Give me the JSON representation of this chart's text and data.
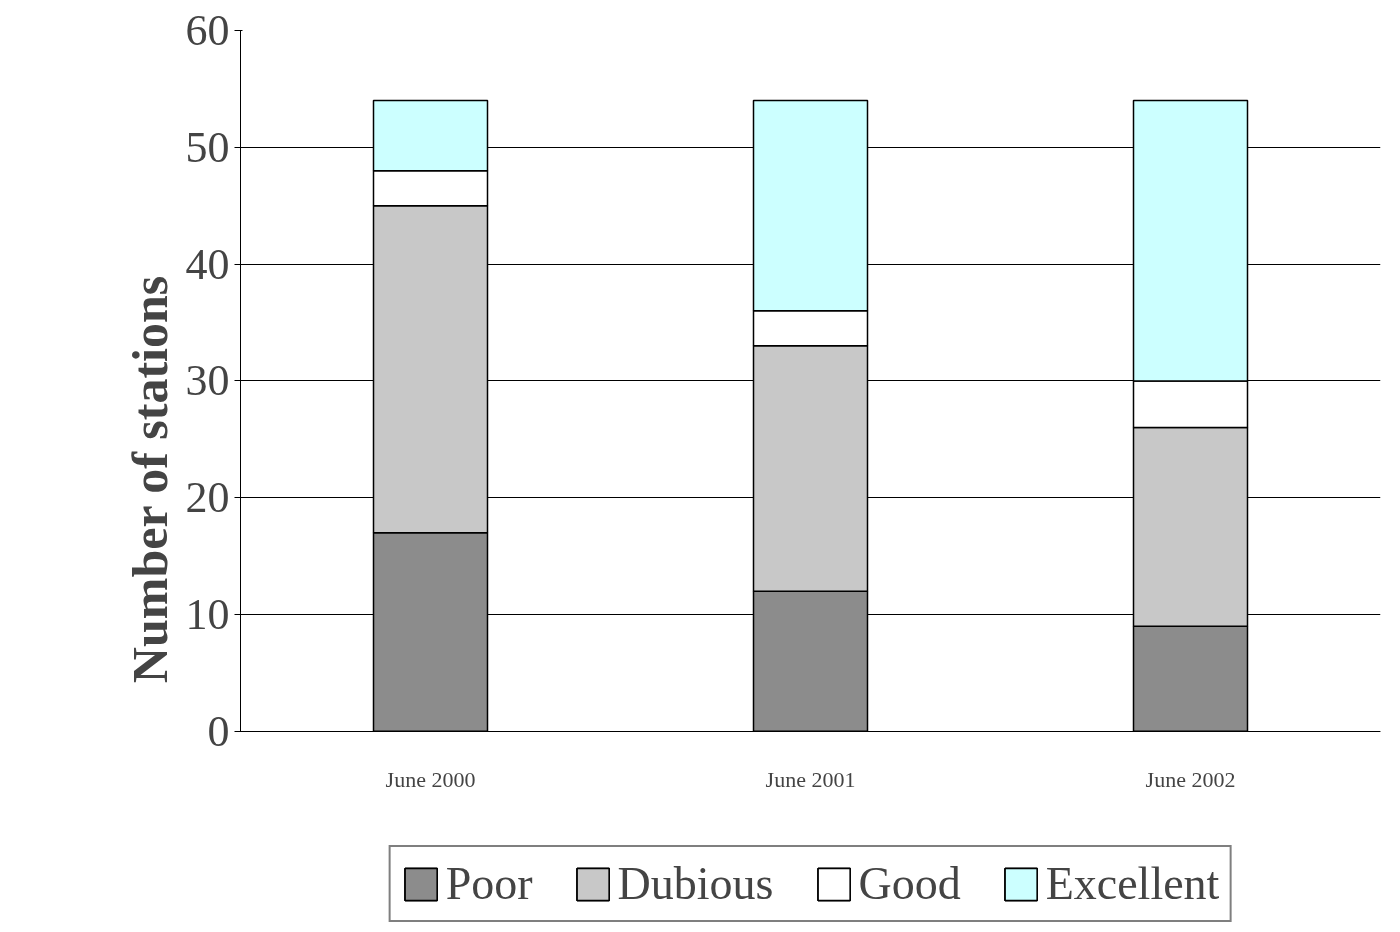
{
  "chart_data": {
    "type": "bar",
    "stacked": true,
    "ylabel": "Number of stations",
    "categories": [
      "June 2000",
      "June 2001",
      "June 2002"
    ],
    "series": [
      {
        "name": "Poor",
        "color": "#8c8c8c",
        "values": [
          17,
          12,
          9
        ]
      },
      {
        "name": "Dubious",
        "color": "#c8c8c8",
        "values": [
          28,
          21,
          17
        ]
      },
      {
        "name": "Good",
        "color": "#ffffff",
        "values": [
          3,
          3,
          4
        ]
      },
      {
        "name": "Excellent",
        "color": "#ccffff",
        "values": [
          6,
          18,
          24
        ]
      }
    ],
    "ylim": [
      0,
      60
    ],
    "yticks": [
      0,
      10,
      20,
      30,
      40,
      50,
      60
    ],
    "grid": "y",
    "legend": "bottom"
  }
}
